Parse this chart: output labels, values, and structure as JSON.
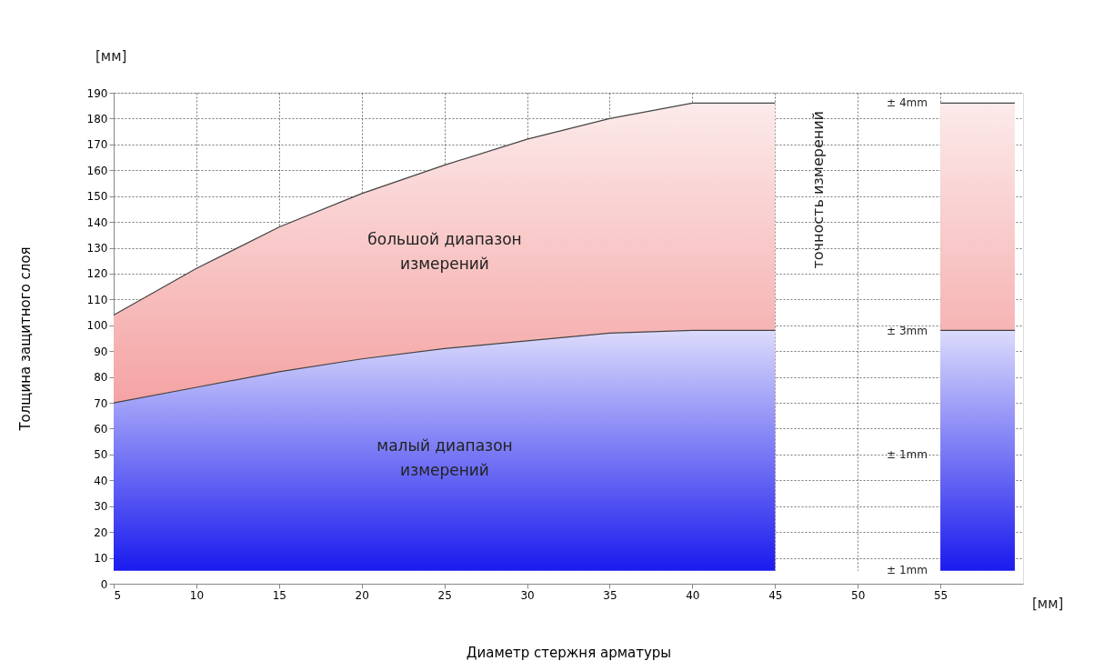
{
  "chart_data": {
    "type": "area",
    "xlabel": "Диаметр стержня арматуры",
    "ylabel": "Толщина защитного слоя",
    "x": [
      5,
      10,
      15,
      20,
      25,
      30,
      35,
      40,
      45,
      50,
      55,
      59.5
    ],
    "series": [
      {
        "color": "#1010ee",
        "values": [
          70,
          76,
          82,
          87,
          91,
          94,
          97,
          98,
          98,
          null,
          98,
          98
        ]
      },
      {
        "color": "#f07878",
        "values": [
          104,
          122,
          138,
          151,
          162,
          172,
          180,
          186,
          186,
          null,
          186,
          186
        ]
      }
    ],
    "bands": [
      {
        "axis": "y",
        "from": 0,
        "to": 5,
        "color": "#ffffff"
      }
    ],
    "xlim": [
      5,
      60
    ],
    "xticks": [
      5,
      10,
      15,
      20,
      25,
      30,
      35,
      40,
      45,
      50,
      55
    ],
    "ylim": [
      0,
      190
    ],
    "yticks": [
      0,
      10,
      20,
      30,
      40,
      50,
      60,
      70,
      80,
      90,
      100,
      110,
      120,
      130,
      140,
      150,
      160,
      170,
      180,
      190
    ],
    "grid": true,
    "annotations": [
      "[мм]",
      "[мм]",
      "точность измерений",
      "большой  диапазон\nизмерений",
      "малый  диапазон\nизмерений",
      "± 4mm",
      "± 3mm",
      "± 1mm",
      "± 1mm"
    ]
  }
}
